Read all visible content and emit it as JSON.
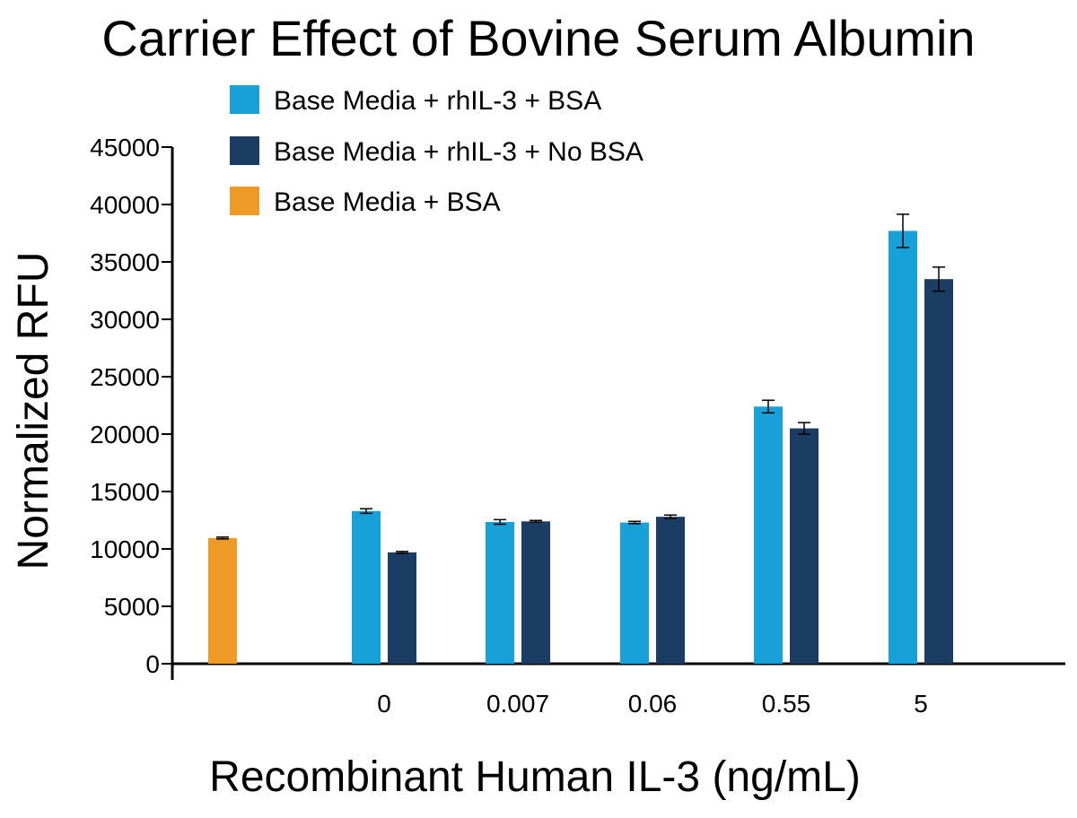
{
  "chart_data": {
    "type": "bar",
    "title": "Carrier Effect of Bovine Serum Albumin",
    "xlabel": "Recombinant Human IL-3 (ng/mL)",
    "ylabel": "Normalized RFU",
    "ylim": [
      0,
      45000
    ],
    "yticks": [
      0,
      5000,
      10000,
      15000,
      20000,
      25000,
      30000,
      35000,
      40000,
      45000
    ],
    "grid": false,
    "legend_position": "top-left",
    "categories": [
      "",
      "0",
      "0.007",
      "0.06",
      "0.55",
      "5"
    ],
    "series": [
      {
        "name": "Base Media + rhIL-3 + BSA",
        "color": "#18a0d8",
        "values": [
          null,
          13300,
          12350,
          12300,
          22400,
          37700
        ],
        "errors": [
          null,
          200,
          200,
          100,
          550,
          1450
        ]
      },
      {
        "name": "Base Media + rhIL-3 + No BSA",
        "color": "#1b3d63",
        "values": [
          null,
          9700,
          12400,
          12800,
          20500,
          33500
        ],
        "errors": [
          null,
          80,
          80,
          150,
          500,
          1050
        ]
      },
      {
        "name": "Base Media + BSA",
        "color": "#ee9a26",
        "values": [
          10950,
          null,
          null,
          null,
          null,
          null
        ],
        "errors": [
          80,
          null,
          null,
          null,
          null,
          null
        ]
      }
    ]
  }
}
